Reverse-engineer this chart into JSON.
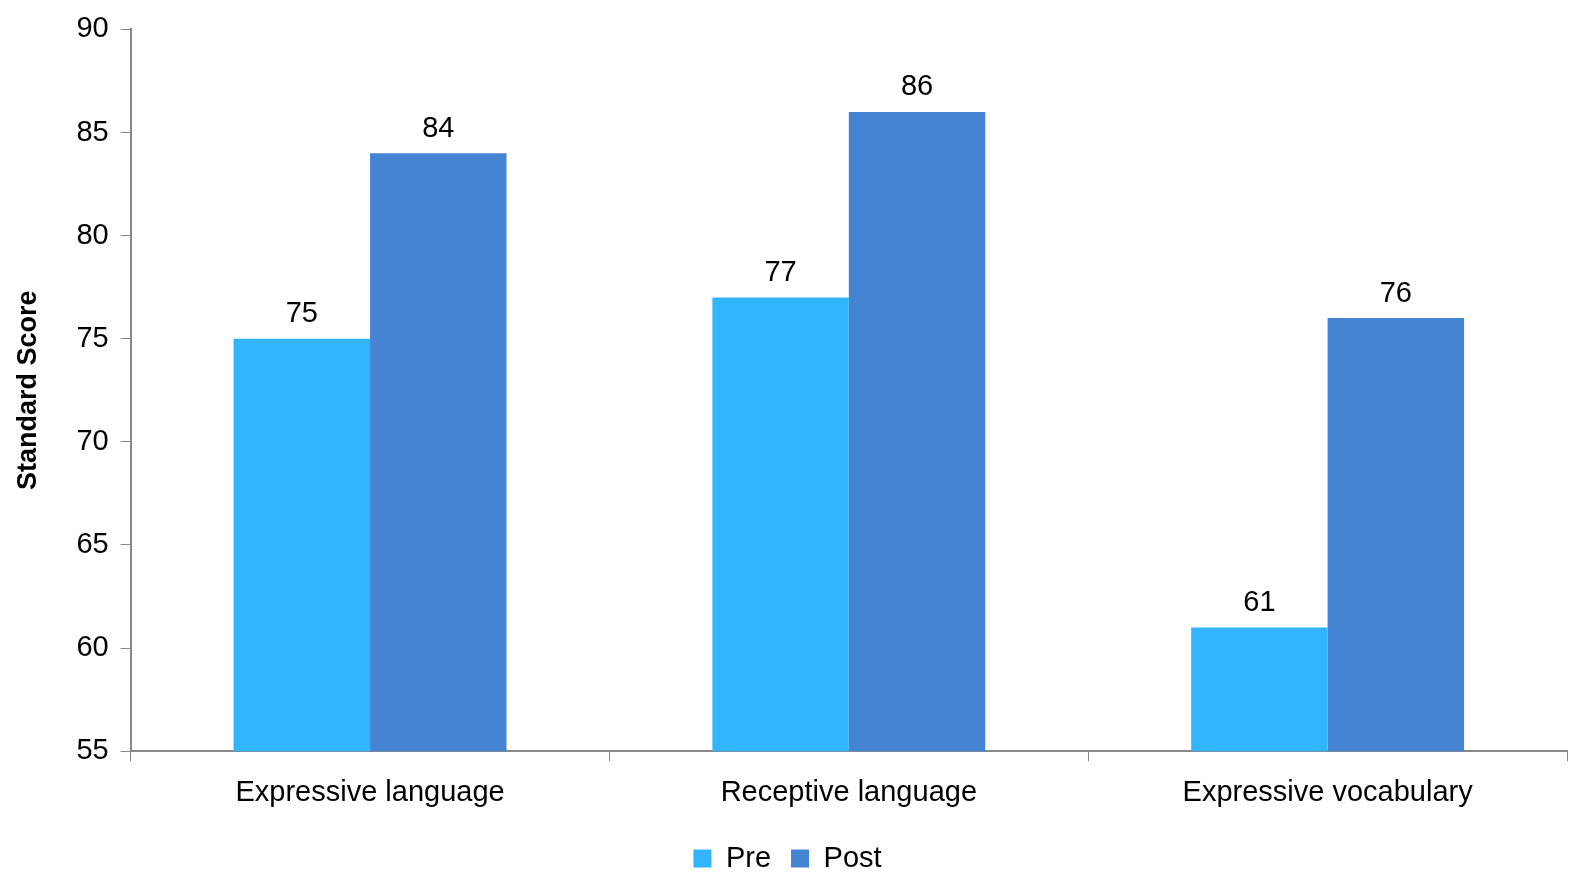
{
  "chart_data": {
    "type": "bar",
    "ylabel": "Standard Score",
    "categories": [
      "Expressive language",
      "Receptive language",
      "Expressive vocabulary"
    ],
    "series": [
      {
        "name": "Pre",
        "color": "#33b5fe",
        "values": [
          75,
          77,
          61
        ]
      },
      {
        "name": "Post",
        "color": "#4584d3",
        "values": [
          84,
          86,
          76
        ]
      }
    ],
    "ylim": [
      55,
      90
    ],
    "yticks": [
      55,
      60,
      65,
      70,
      75,
      80,
      85,
      90
    ],
    "grid": false,
    "legend": "bottom",
    "data_labels": true
  }
}
